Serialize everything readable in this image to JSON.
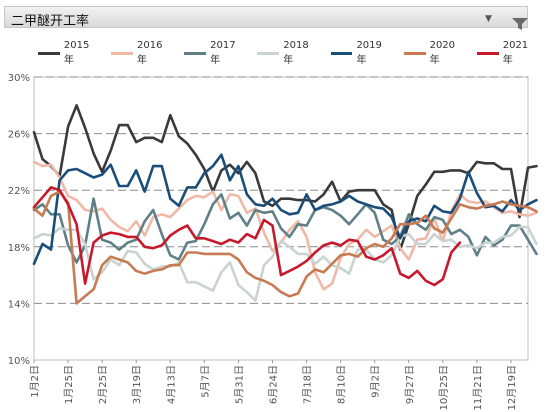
{
  "header": {
    "title": "二甲醚开工率",
    "dropdown_icon": "chevron-down-icon",
    "filter_icon": "filter-icon"
  },
  "chart_data": {
    "type": "line",
    "title": "二甲醚开工率",
    "xlabel": "",
    "ylabel": "",
    "ylim": [
      10,
      30
    ],
    "yticks": [
      "10%",
      "14%",
      "18%",
      "22%",
      "26%",
      "30%"
    ],
    "ytick_values": [
      10,
      14,
      18,
      22,
      26,
      30
    ],
    "grid": "horizontal-dashed",
    "legend_position": "top",
    "x_tick_labels": [
      "1月2日",
      "1月25日",
      "2月25日",
      "3月19日",
      "4月13日",
      "5月7日",
      "5月31日",
      "6月24日",
      "7月18日",
      "8月10日",
      "9月2日",
      "9月27日",
      "10月25日",
      "11月21日",
      "12月19日"
    ],
    "x_tick_weeks": [
      0,
      4,
      8,
      12,
      16,
      20,
      24,
      28,
      32,
      36,
      40,
      44,
      48,
      52,
      56
    ],
    "x_range_weeks": [
      0,
      58
    ],
    "series": [
      {
        "name": "2015年",
        "color": "#3a3a3a",
        "values": [
          26.1,
          24.2,
          23.7,
          23.0,
          26.5,
          28.0,
          26.4,
          24.6,
          23.3,
          24.8,
          26.6,
          26.6,
          25.4,
          25.7,
          25.7,
          25.4,
          27.3,
          25.8,
          25.3,
          24.5,
          23.5,
          21.9,
          23.4,
          23.8,
          23.2,
          24.0,
          23.2,
          21.2,
          20.9,
          21.4,
          21.4,
          21.3,
          21.3,
          21.2,
          21.7,
          22.6,
          21.2,
          21.9,
          22.0,
          22.0,
          22.0,
          21.0,
          20.6,
          17.8,
          19.6,
          21.6,
          22.4,
          23.3,
          23.3,
          23.4,
          23.4,
          23.2,
          24.0,
          23.9,
          23.9,
          23.5,
          23.5,
          20.1,
          23.6,
          23.7
        ]
      },
      {
        "name": "2016年",
        "color": "#f0b9a7",
        "values": [
          24.0,
          23.7,
          23.8,
          22.9,
          21.6,
          21.3,
          20.6,
          20.5,
          20.7,
          19.9,
          19.4,
          19.1,
          19.8,
          18.8,
          20.1,
          20.3,
          20.1,
          20.7,
          21.3,
          21.6,
          21.5,
          21.9,
          20.6,
          21.7,
          21.6,
          20.4,
          20.7,
          19.0,
          17.7,
          18.3,
          19.2,
          19.8,
          18.7,
          16.2,
          15.0,
          15.4,
          17.2,
          18.2,
          18.5,
          19.2,
          18.7,
          19.1,
          19.5,
          17.9,
          17.1,
          18.5,
          18.6,
          20.0,
          18.4,
          20.5,
          21.7,
          21.2,
          21.1,
          21.2,
          20.8,
          20.4,
          20.5,
          20.3,
          20.2,
          20.4
        ]
      },
      {
        "name": "2017年",
        "color": "#5f8087",
        "values": [
          20.6,
          21.0,
          20.3,
          20.3,
          18.1,
          16.9,
          18.1,
          21.4,
          18.5,
          18.3,
          17.8,
          18.3,
          18.5,
          19.8,
          20.6,
          18.9,
          17.4,
          17.1,
          18.3,
          18.4,
          19.6,
          21.0,
          21.7,
          20.0,
          20.4,
          19.5,
          20.6,
          20.4,
          20.5,
          19.3,
          18.7,
          19.6,
          19.5,
          20.6,
          20.8,
          20.6,
          20.2,
          19.6,
          20.3,
          21.0,
          20.4,
          18.5,
          18.2,
          18.7,
          20.3,
          19.6,
          19.2,
          20.1,
          19.9,
          18.9,
          19.2,
          18.7,
          17.4,
          18.7,
          18.1,
          18.5,
          19.5,
          19.5,
          18.5,
          17.5
        ]
      },
      {
        "name": "2018年",
        "color": "#c9d3d2",
        "values": [
          18.6,
          18.9,
          18.8,
          19.3,
          19.2,
          19.2,
          18.2,
          15.7,
          16.2,
          17.1,
          16.7,
          17.7,
          17.6,
          16.8,
          16.4,
          16.6,
          16.6,
          16.9,
          15.5,
          15.5,
          15.2,
          14.9,
          16.2,
          16.9,
          15.3,
          14.8,
          14.2,
          16.7,
          17.3,
          18.4,
          18.0,
          17.5,
          17.5,
          16.8,
          17.3,
          16.7,
          16.5,
          16.1,
          17.8,
          17.8,
          17.1,
          16.9,
          17.4,
          18.7,
          18.9,
          18.2,
          18.2,
          18.9,
          18.4,
          18.5,
          18.0,
          18.1,
          17.9,
          18.3,
          18.3,
          18.7,
          18.8,
          19.4,
          19.4,
          18.2
        ]
      },
      {
        "name": "2019年",
        "color": "#1b4d7a",
        "values": [
          16.8,
          18.2,
          17.8,
          22.7,
          23.4,
          23.5,
          23.2,
          22.9,
          23.1,
          23.8,
          22.3,
          22.3,
          23.4,
          21.9,
          23.7,
          23.7,
          21.4,
          20.9,
          22.2,
          22.2,
          23.2,
          23.7,
          24.5,
          22.7,
          23.7,
          21.7,
          21.0,
          20.9,
          21.4,
          20.6,
          20.3,
          20.4,
          21.7,
          20.6,
          20.9,
          21.0,
          21.2,
          21.6,
          21.2,
          21.0,
          20.8,
          20.7,
          20.1,
          18.6,
          19.8,
          20.0,
          19.8,
          20.9,
          20.5,
          20.4,
          21.4,
          23.3,
          21.8,
          20.8,
          20.9,
          20.5,
          21.3,
          20.6,
          21.0,
          21.3
        ]
      },
      {
        "name": "2020年",
        "color": "#c87a53",
        "values": [
          20.7,
          20.2,
          21.6,
          21.9,
          21.1,
          14.0,
          14.5,
          15.0,
          16.7,
          17.3,
          17.1,
          16.9,
          16.3,
          16.1,
          16.3,
          16.4,
          16.7,
          16.7,
          17.6,
          17.6,
          17.5,
          17.5,
          17.5,
          17.5,
          17.1,
          16.2,
          15.8,
          15.6,
          15.3,
          14.8,
          14.5,
          14.7,
          15.9,
          16.4,
          16.2,
          16.8,
          17.4,
          17.5,
          17.3,
          17.9,
          18.2,
          18.0,
          18.6,
          19.6,
          19.6,
          19.7,
          20.2,
          19.3,
          19.0,
          20.0,
          21.0,
          20.8,
          20.7,
          20.9,
          21.0,
          21.2,
          21.0,
          20.9,
          20.8,
          20.5
        ]
      },
      {
        "name": "2021年",
        "color": "#c8182c",
        "values": [
          20.8,
          21.5,
          22.2,
          22.0,
          21.0,
          19.6,
          15.4,
          18.3,
          18.8,
          19.0,
          18.9,
          18.7,
          18.7,
          18.0,
          17.9,
          18.1,
          18.8,
          19.2,
          19.5,
          18.6,
          18.6,
          18.4,
          18.2,
          18.5,
          18.3,
          18.9,
          18.6,
          19.9,
          19.5,
          16.0,
          16.3,
          16.6,
          17.0,
          17.6,
          18.1,
          18.3,
          18.1,
          18.5,
          18.4,
          17.3,
          17.1,
          17.4,
          17.9,
          16.1,
          15.8,
          16.3,
          15.6,
          15.3,
          15.7,
          17.6,
          18.3
        ]
      }
    ]
  }
}
